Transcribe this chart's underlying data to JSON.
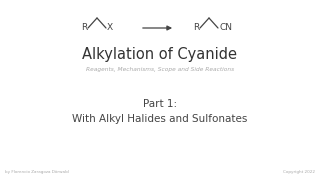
{
  "bg_color": "#ffffff",
  "title": "Alkylation of Cyanide",
  "subtitle": "Reagents, Mechanisms, Scope and Side Reactions",
  "part_line1": "Part 1:",
  "part_line2": "With Alkyl Halides and Sulfonates",
  "footer_left": "by Florencio Zaragoza Dörwald",
  "footer_right": "Copyright 2022",
  "title_color": "#333333",
  "subtitle_color": "#aaaaaa",
  "part_color": "#444444",
  "footer_color": "#aaaaaa",
  "reaction_color": "#444444",
  "title_fontsize": 10.5,
  "subtitle_fontsize": 4.2,
  "part_fontsize": 7.5,
  "footer_fontsize": 3.0,
  "chem_fontsize": 6.5
}
